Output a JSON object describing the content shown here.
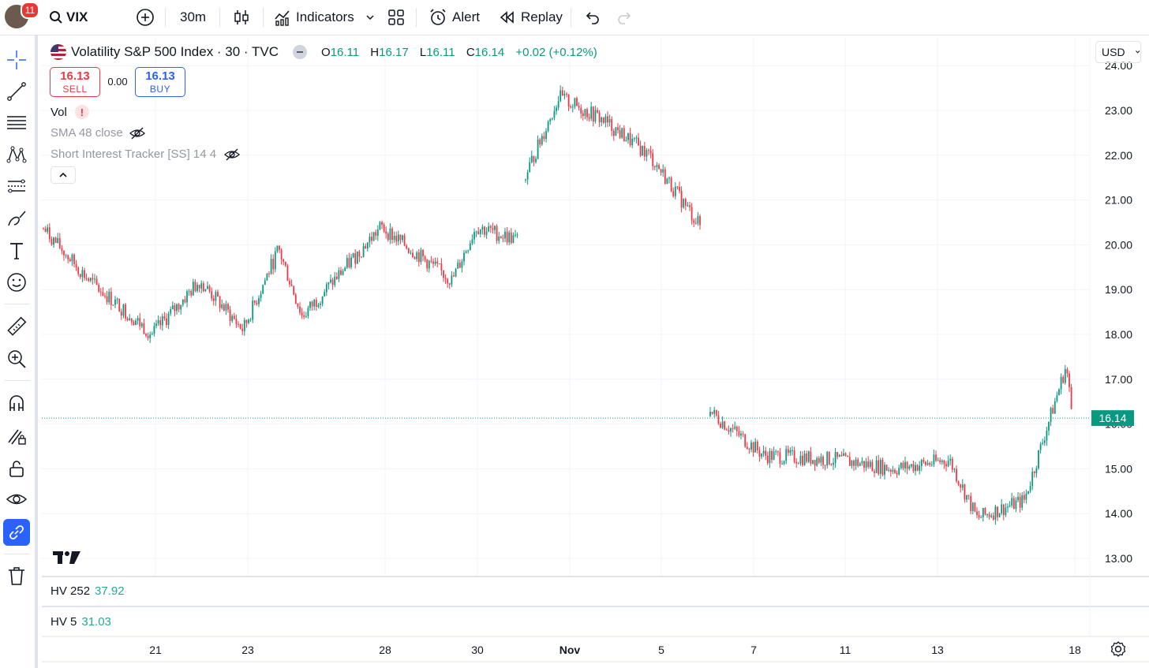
{
  "topbar": {
    "notification_count": "11",
    "symbol": "VIX",
    "interval": "30m",
    "indicators_label": "Indicators",
    "alert_label": "Alert",
    "replay_label": "Replay"
  },
  "legend": {
    "title": "Volatility S&P 500 Index · 30 · TVC",
    "o_label": "O",
    "o_value": "16.11",
    "h_label": "H",
    "h_value": "16.17",
    "l_label": "L",
    "l_value": "16.11",
    "c_label": "C",
    "c_value": "16.14",
    "change": "+0.02 (+0.12%)"
  },
  "trade": {
    "sell_price": "16.13",
    "sell_label": "SELL",
    "spread": "0.00",
    "buy_price": "16.13",
    "buy_label": "BUY"
  },
  "indicators": {
    "vol": "Vol",
    "vol_warning": "!",
    "sma": "SMA 48 close",
    "short_interest": "Short Interest Tracker [SS] 14 4"
  },
  "currency": "USD",
  "chart_data": {
    "type": "candlestick",
    "title": "Volatility S&P 500 Index · 30 · TVC",
    "y_ticks": [
      "24.00",
      "23.00",
      "22.00",
      "21.00",
      "20.00",
      "19.00",
      "18.00",
      "17.00",
      "16.00",
      "15.00",
      "14.00",
      "13.00"
    ],
    "ylim": [
      12.6,
      24.3
    ],
    "x_ticks": [
      "21",
      "23",
      "28",
      "30",
      "Nov",
      "5",
      "7",
      "11",
      "13",
      "18"
    ],
    "last_price": "16.14",
    "approx_path": [
      {
        "x": "Oct 18 start",
        "y": 20.4
      },
      {
        "x": "Oct 18",
        "y": 19.2
      },
      {
        "x": "Oct 21",
        "y": 18.0
      },
      {
        "x": "Oct 22",
        "y": 19.2
      },
      {
        "x": "Oct 23",
        "y": 18.1
      },
      {
        "x": "Oct 24",
        "y": 19.9
      },
      {
        "x": "Oct 25",
        "y": 18.4
      },
      {
        "x": "Oct 28",
        "y": 20.4
      },
      {
        "x": "Oct 29",
        "y": 19.2
      },
      {
        "x": "Oct 30",
        "y": 20.4
      },
      {
        "x": "Oct 31",
        "y": 20.1
      },
      {
        "x": "Oct 31 late",
        "y": 21.5
      },
      {
        "x": "Nov 1",
        "y": 23.3
      },
      {
        "x": "Nov 4",
        "y": 22.8
      },
      {
        "x": "Nov 5",
        "y": 22.0
      },
      {
        "x": "Nov 6",
        "y": 20.4
      },
      {
        "x": "Nov 7",
        "y": 16.3
      },
      {
        "x": "Nov 8",
        "y": 15.3
      },
      {
        "x": "Nov 11",
        "y": 15.2
      },
      {
        "x": "Nov 12",
        "y": 15.0
      },
      {
        "x": "Nov 13",
        "y": 15.2
      },
      {
        "x": "Nov 14",
        "y": 13.9
      },
      {
        "x": "Nov 15",
        "y": 14.3
      },
      {
        "x": "Nov 15 late",
        "y": 17.3
      },
      {
        "x": "Nov 18",
        "y": 16.14
      }
    ],
    "colors": {
      "up": "#089981",
      "down": "#f23645",
      "last_price_bg": "#089981"
    }
  },
  "panes": {
    "hv252_label": "HV 252",
    "hv252_value": "37.92",
    "hv5_label": "HV 5",
    "hv5_value": "31.03"
  }
}
